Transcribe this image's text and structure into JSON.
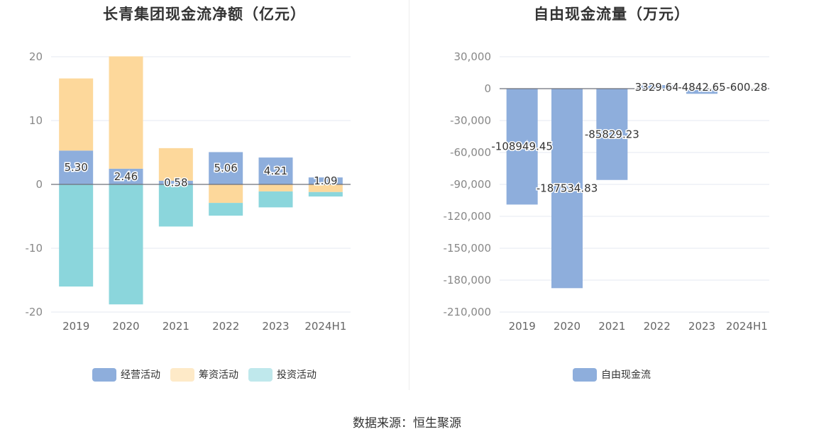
{
  "chart_data": [
    {
      "type": "bar",
      "stacked": true,
      "title": "长青集团现金流净额（亿元）",
      "categories": [
        "2019",
        "2020",
        "2021",
        "2022",
        "2023",
        "2024H1"
      ],
      "ylim": [
        -20,
        20
      ],
      "yticks": [
        20,
        10,
        0,
        -10,
        -20
      ],
      "grid": true,
      "legend_position": "bottom",
      "series": [
        {
          "name": "经营活动",
          "color": "#8eaedc",
          "values": [
            5.3,
            2.46,
            0.58,
            5.06,
            4.21,
            1.09
          ],
          "labels": [
            "5.30",
            "2.46",
            "0.58",
            "5.06",
            "4.21",
            "1.09"
          ]
        },
        {
          "name": "筹资活动",
          "color": "#fdd89b",
          "values": [
            11.3,
            17.6,
            5.1,
            -2.9,
            -1.1,
            -1.2
          ]
        },
        {
          "name": "投资活动",
          "color": "#8bd6dc",
          "values": [
            -16.0,
            -18.8,
            -6.6,
            -2.0,
            -2.5,
            -0.7
          ]
        }
      ]
    },
    {
      "type": "bar",
      "title": "自由现金流量（万元）",
      "categories": [
        "2019",
        "2020",
        "2021",
        "2022",
        "2023",
        "2024H1"
      ],
      "ylim": [
        -210000,
        30000
      ],
      "yticks": [
        30000,
        0,
        -30000,
        -60000,
        -90000,
        -120000,
        -150000,
        -180000,
        -210000
      ],
      "ytick_labels": [
        "30,000",
        "0",
        "-30,000",
        "-60,000",
        "-90,000",
        "-120,000",
        "-150,000",
        "-180,000",
        "-210,000"
      ],
      "grid": true,
      "legend_position": "bottom",
      "series": [
        {
          "name": "自由现金流",
          "color": "#8eaedc",
          "values": [
            -108949.45,
            -187534.83,
            -85829.23,
            3329.64,
            -4842.65,
            -600.28
          ],
          "labels": [
            "-108949.45",
            "-187534.83",
            "-85829.23",
            "3329.64",
            "-4842.65",
            "-600.28"
          ]
        }
      ]
    }
  ],
  "footer": {
    "source": "数据来源：恒生聚源"
  }
}
